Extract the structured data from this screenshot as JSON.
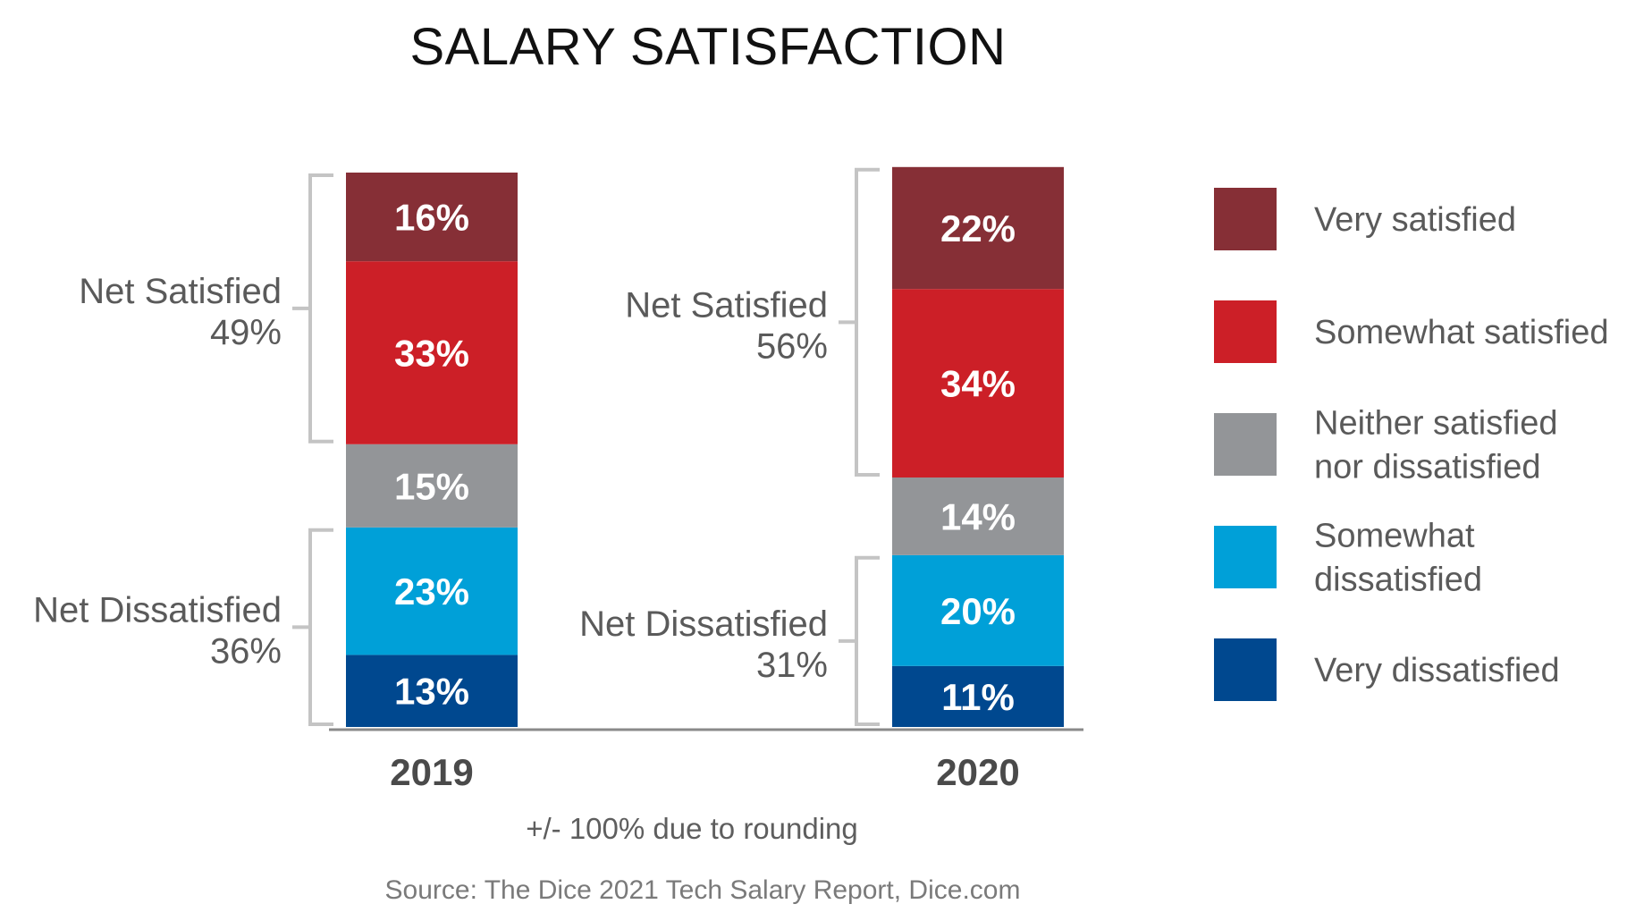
{
  "chart_data": {
    "type": "bar",
    "stacked": true,
    "title": "SALARY SATISFACTION",
    "categories": [
      "2019",
      "2020"
    ],
    "ylim": [
      0,
      100
    ],
    "series": [
      {
        "name": "Very dissatisfied",
        "color": "#00488f",
        "values": [
          13,
          11
        ]
      },
      {
        "name": "Somewhat dissatisfied",
        "color": "#00a0d8",
        "values": [
          23,
          20
        ]
      },
      {
        "name": "Neither satisfied nor dissatisfied",
        "color": "#939598",
        "values": [
          15,
          14
        ]
      },
      {
        "name": "Somewhat satisfied",
        "color": "#cc1f27",
        "values": [
          33,
          34
        ]
      },
      {
        "name": "Very satisfied",
        "color": "#862f36",
        "values": [
          16,
          22
        ]
      }
    ],
    "value_suffix": "%",
    "legend_order": [
      4,
      3,
      2,
      1,
      0
    ],
    "legend_lines": [
      [
        "Very satisfied"
      ],
      [
        "Somewhat satisfied"
      ],
      [
        "Neither satisfied",
        "nor dissatisfied"
      ],
      [
        "Somewhat",
        "dissatisfied"
      ],
      [
        "Very dissatisfied"
      ]
    ],
    "legend_position": "right",
    "groups": [
      {
        "category": "2019",
        "name": "Net Satisfied",
        "value": "49%",
        "series": [
          3,
          4
        ]
      },
      {
        "category": "2019",
        "name": "Net Dissatisfied",
        "value": "36%",
        "series": [
          0,
          1
        ]
      },
      {
        "category": "2020",
        "name": "Net Satisfied",
        "value": "56%",
        "series": [
          3,
          4
        ]
      },
      {
        "category": "2020",
        "name": "Net Dissatisfied",
        "value": "31%",
        "series": [
          0,
          1
        ]
      }
    ],
    "note": "+/- 100% due to rounding",
    "source": "Source: The Dice 2021 Tech Salary Report, Dice.com"
  }
}
